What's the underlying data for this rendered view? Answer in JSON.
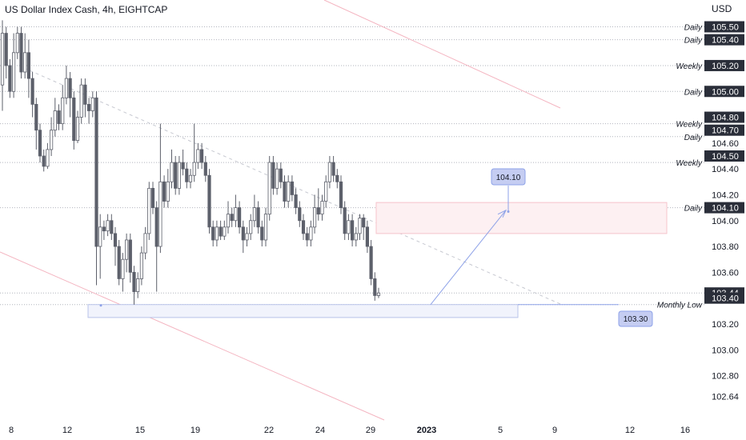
{
  "header": {
    "symbol_title": "US Dollar Index Cash, 4h, EIGHTCAP",
    "currency": "USD"
  },
  "colors": {
    "candle_body": "#5d606b",
    "candle_wick": "#5d606b",
    "bullish_fill": "#ffffff",
    "level_line": "#b2b5be",
    "channel_line": "#f4b4c0",
    "trend_dash": "#c7c9d1",
    "projection_line": "#8ea2e8",
    "zone_red_fill": "#fdf0f2",
    "zone_red_stroke": "#f6c3cb",
    "zone_blue_fill": "#f1f3fc",
    "zone_blue_stroke": "#b9c3ea",
    "price_tag_dark": "#2a2e39",
    "callout_fill": "#c5cdf2",
    "callout_stroke": "#8ea2e8",
    "axis_text": "#131722"
  },
  "chart_data": {
    "type": "candlestick",
    "title": "US Dollar Index Cash, 4h, EIGHTCAP",
    "currency": "USD",
    "ylim": [
      102.62,
      105.62
    ],
    "x_tick_labels": [
      "8",
      "12",
      "15",
      "19",
      "22",
      "24",
      "29",
      "2023",
      "5",
      "9",
      "12",
      "16"
    ],
    "y_tick_labels": [
      {
        "value": 105.5,
        "label": "105.50",
        "tag": true
      },
      {
        "value": 105.4,
        "label": "105.40",
        "tag": true
      },
      {
        "value": 105.2,
        "label": "105.20",
        "tag": true
      },
      {
        "value": 105.0,
        "label": "105.00",
        "tag": true
      },
      {
        "value": 104.8,
        "label": "104.80",
        "tag": true
      },
      {
        "value": 104.7,
        "label": "104.70",
        "tag": true
      },
      {
        "value": 104.6,
        "label": "104.60",
        "tag": false
      },
      {
        "value": 104.5,
        "label": "104.50",
        "tag": true
      },
      {
        "value": 104.4,
        "label": "104.40",
        "tag": false
      },
      {
        "value": 104.2,
        "label": "104.20",
        "tag": false
      },
      {
        "value": 104.1,
        "label": "104.10",
        "tag": true
      },
      {
        "value": 104.0,
        "label": "104.00",
        "tag": false
      },
      {
        "value": 103.8,
        "label": "103.80",
        "tag": false
      },
      {
        "value": 103.6,
        "label": "103.60",
        "tag": false
      },
      {
        "value": 103.44,
        "label": "103.44",
        "tag": true
      },
      {
        "value": 103.4,
        "label": "103.40",
        "tag": true
      },
      {
        "value": 103.2,
        "label": "103.20",
        "tag": false
      },
      {
        "value": 103.0,
        "label": "103.00",
        "tag": false
      },
      {
        "value": 102.8,
        "label": "102.80",
        "tag": false
      },
      {
        "value": 102.64,
        "label": "102.64",
        "tag": false
      }
    ],
    "levels": [
      {
        "value": 105.5,
        "label": "Daily"
      },
      {
        "value": 105.4,
        "label": "Daily"
      },
      {
        "value": 105.2,
        "label": "Weekly"
      },
      {
        "value": 105.0,
        "label": "Daily"
      },
      {
        "value": 104.75,
        "label": "Weekly"
      },
      {
        "value": 104.65,
        "label": "Daily"
      },
      {
        "value": 104.45,
        "label": "Weekly"
      },
      {
        "value": 104.1,
        "label": "Daily"
      },
      {
        "value": 103.44,
        "label": ""
      },
      {
        "value": 103.35,
        "label": "Monthly Low"
      }
    ],
    "annotations": [
      {
        "label": "104.10",
        "value": 104.1
      },
      {
        "label": "103.30",
        "value": 103.3
      }
    ],
    "candles": [
      [
        105.05,
        105.45,
        105.55,
        104.85
      ],
      [
        105.45,
        105.2,
        105.5,
        105.1
      ],
      [
        105.2,
        105.0,
        105.25,
        104.95
      ],
      [
        105.0,
        105.3,
        105.45,
        104.95
      ],
      [
        105.3,
        105.45,
        105.5,
        105.25
      ],
      [
        105.45,
        105.15,
        105.5,
        105.1
      ],
      [
        105.15,
        105.3,
        105.45,
        105.1
      ],
      [
        105.3,
        105.1,
        105.4,
        104.95
      ],
      [
        105.1,
        104.9,
        105.15,
        104.8
      ],
      [
        104.9,
        104.7,
        104.95,
        104.55
      ],
      [
        104.7,
        104.5,
        104.75,
        104.45
      ],
      [
        104.5,
        104.42,
        104.55,
        104.38
      ],
      [
        104.42,
        104.55,
        104.6,
        104.4
      ],
      [
        104.55,
        104.7,
        104.8,
        104.5
      ],
      [
        104.7,
        104.85,
        104.95,
        104.65
      ],
      [
        104.85,
        104.75,
        104.9,
        104.7
      ],
      [
        104.75,
        104.95,
        105.05,
        104.7
      ],
      [
        104.95,
        105.1,
        105.2,
        104.9
      ],
      [
        105.1,
        104.95,
        105.15,
        104.8
      ],
      [
        104.95,
        104.62,
        105.0,
        104.55
      ],
      [
        104.62,
        104.8,
        104.85,
        104.6
      ],
      [
        104.8,
        105.05,
        105.1,
        104.75
      ],
      [
        105.05,
        104.9,
        105.1,
        104.8
      ],
      [
        104.9,
        104.85,
        104.95,
        104.75
      ],
      [
        104.85,
        104.95,
        105.0,
        104.8
      ],
      [
        104.95,
        103.8,
        105.0,
        103.5
      ],
      [
        103.8,
        103.95,
        104.05,
        103.55
      ],
      [
        103.95,
        103.92,
        104.0,
        103.85
      ],
      [
        103.92,
        104.0,
        104.05,
        103.88
      ],
      [
        104.0,
        103.9,
        104.05,
        103.85
      ],
      [
        103.9,
        103.8,
        103.95,
        103.65
      ],
      [
        103.8,
        103.55,
        103.85,
        103.5
      ],
      [
        103.55,
        103.7,
        103.75,
        103.45
      ],
      [
        103.7,
        103.85,
        103.9,
        103.6
      ],
      [
        103.85,
        103.6,
        103.9,
        103.52
      ],
      [
        103.6,
        103.45,
        103.65,
        103.35
      ],
      [
        103.45,
        103.55,
        103.6,
        103.4
      ],
      [
        103.55,
        103.75,
        103.8,
        103.5
      ],
      [
        103.75,
        103.9,
        103.95,
        103.7
      ],
      [
        103.9,
        104.25,
        104.3,
        103.85
      ],
      [
        104.25,
        104.1,
        104.3,
        104.05
      ],
      [
        104.1,
        103.8,
        104.15,
        103.45
      ],
      [
        103.8,
        104.3,
        104.75,
        103.75
      ],
      [
        104.3,
        104.15,
        104.35,
        104.1
      ],
      [
        104.15,
        104.3,
        104.4,
        104.1
      ],
      [
        104.3,
        104.45,
        104.55,
        104.25
      ],
      [
        104.45,
        104.25,
        104.5,
        104.2
      ],
      [
        104.25,
        104.45,
        104.5,
        104.2
      ],
      [
        104.45,
        104.4,
        104.55,
        104.35
      ],
      [
        104.4,
        104.3,
        104.45,
        104.25
      ],
      [
        104.3,
        104.35,
        104.4,
        104.25
      ],
      [
        104.35,
        104.45,
        104.75,
        104.3
      ],
      [
        104.45,
        104.55,
        104.6,
        104.4
      ],
      [
        104.55,
        104.45,
        104.6,
        104.4
      ],
      [
        104.45,
        104.35,
        104.5,
        104.3
      ],
      [
        104.35,
        103.95,
        104.4,
        103.9
      ],
      [
        103.95,
        103.85,
        104.0,
        103.8
      ],
      [
        103.85,
        103.95,
        104.0,
        103.8
      ],
      [
        103.95,
        103.88,
        104.0,
        103.85
      ],
      [
        103.88,
        103.95,
        104.0,
        103.85
      ],
      [
        103.95,
        104.05,
        104.15,
        103.9
      ],
      [
        104.05,
        104.0,
        104.1,
        103.95
      ],
      [
        104.0,
        104.1,
        104.2,
        103.95
      ],
      [
        104.1,
        103.95,
        104.15,
        103.9
      ],
      [
        103.95,
        103.85,
        104.0,
        103.75
      ],
      [
        103.85,
        103.9,
        103.95,
        103.8
      ],
      [
        103.9,
        104.0,
        104.05,
        103.85
      ],
      [
        104.0,
        104.1,
        104.2,
        103.95
      ],
      [
        104.1,
        103.95,
        104.15,
        103.9
      ],
      [
        103.95,
        103.85,
        104.0,
        103.8
      ],
      [
        103.85,
        104.05,
        104.1,
        103.8
      ],
      [
        104.05,
        104.45,
        104.5,
        104.0
      ],
      [
        104.45,
        104.25,
        104.5,
        104.2
      ],
      [
        104.25,
        104.4,
        104.45,
        104.2
      ],
      [
        104.4,
        104.3,
        104.45,
        104.25
      ],
      [
        104.3,
        104.15,
        104.35,
        104.1
      ],
      [
        104.15,
        104.3,
        104.35,
        104.1
      ],
      [
        104.3,
        104.2,
        104.35,
        104.15
      ],
      [
        104.2,
        104.1,
        104.25,
        104.05
      ],
      [
        104.1,
        104.0,
        104.15,
        103.95
      ],
      [
        104.0,
        103.9,
        104.05,
        103.85
      ],
      [
        103.9,
        103.85,
        103.95,
        103.8
      ],
      [
        103.85,
        103.95,
        104.0,
        103.8
      ],
      [
        103.95,
        104.1,
        104.2,
        103.9
      ],
      [
        104.1,
        104.05,
        104.25,
        104.0
      ],
      [
        104.05,
        104.15,
        104.2,
        104.0
      ],
      [
        104.15,
        104.3,
        104.35,
        104.1
      ],
      [
        104.3,
        104.45,
        104.5,
        104.25
      ],
      [
        104.45,
        104.35,
        104.5,
        104.3
      ],
      [
        104.35,
        104.3,
        104.4,
        104.25
      ],
      [
        104.3,
        104.1,
        104.35,
        104.05
      ],
      [
        104.1,
        103.9,
        104.15,
        103.85
      ],
      [
        103.9,
        104.0,
        104.05,
        103.85
      ],
      [
        104.0,
        103.85,
        104.05,
        103.8
      ],
      [
        103.85,
        103.9,
        103.95,
        103.8
      ],
      [
        103.9,
        104.02,
        104.05,
        103.85
      ],
      [
        104.02,
        103.95,
        104.05,
        103.85
      ],
      [
        103.95,
        103.8,
        104.0,
        103.75
      ],
      [
        103.8,
        103.55,
        103.85,
        103.5
      ],
      [
        103.55,
        103.42,
        103.6,
        103.38
      ],
      [
        103.42,
        103.44,
        103.48,
        103.4
      ]
    ]
  }
}
